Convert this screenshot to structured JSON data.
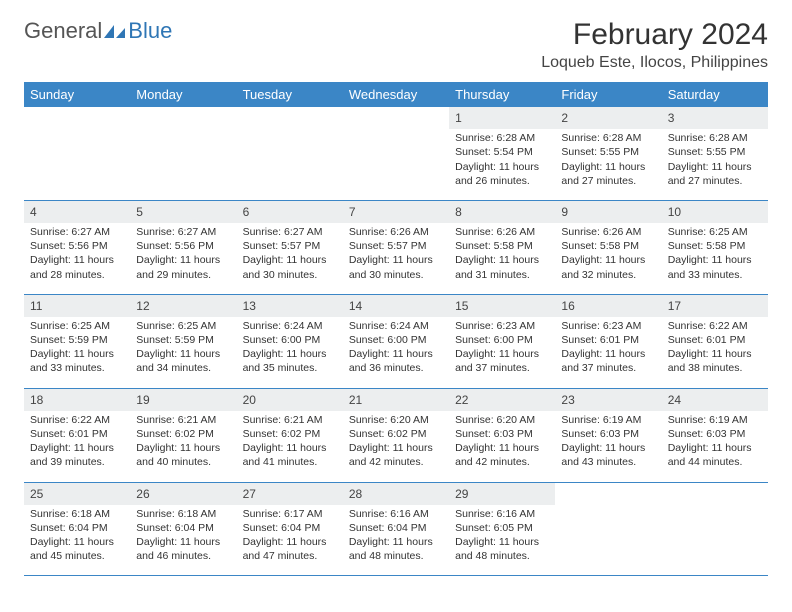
{
  "logo": {
    "text1": "General",
    "text2": "Blue"
  },
  "title": "February 2024",
  "location": "Loqueb Este, Ilocos, Philippines",
  "colors": {
    "header_bg": "#3b86c6",
    "header_text": "#ffffff",
    "daynum_bg": "#eceeef",
    "rule": "#3b86c6",
    "text": "#333333",
    "logo_gray": "#555555",
    "logo_blue": "#2f76b5"
  },
  "weekdays": [
    "Sunday",
    "Monday",
    "Tuesday",
    "Wednesday",
    "Thursday",
    "Friday",
    "Saturday"
  ],
  "weeks": [
    [
      null,
      null,
      null,
      null,
      {
        "n": "1",
        "sr": "6:28 AM",
        "ss": "5:54 PM",
        "dl": "11 hours and 26 minutes."
      },
      {
        "n": "2",
        "sr": "6:28 AM",
        "ss": "5:55 PM",
        "dl": "11 hours and 27 minutes."
      },
      {
        "n": "3",
        "sr": "6:28 AM",
        "ss": "5:55 PM",
        "dl": "11 hours and 27 minutes."
      }
    ],
    [
      {
        "n": "4",
        "sr": "6:27 AM",
        "ss": "5:56 PM",
        "dl": "11 hours and 28 minutes."
      },
      {
        "n": "5",
        "sr": "6:27 AM",
        "ss": "5:56 PM",
        "dl": "11 hours and 29 minutes."
      },
      {
        "n": "6",
        "sr": "6:27 AM",
        "ss": "5:57 PM",
        "dl": "11 hours and 30 minutes."
      },
      {
        "n": "7",
        "sr": "6:26 AM",
        "ss": "5:57 PM",
        "dl": "11 hours and 30 minutes."
      },
      {
        "n": "8",
        "sr": "6:26 AM",
        "ss": "5:58 PM",
        "dl": "11 hours and 31 minutes."
      },
      {
        "n": "9",
        "sr": "6:26 AM",
        "ss": "5:58 PM",
        "dl": "11 hours and 32 minutes."
      },
      {
        "n": "10",
        "sr": "6:25 AM",
        "ss": "5:58 PM",
        "dl": "11 hours and 33 minutes."
      }
    ],
    [
      {
        "n": "11",
        "sr": "6:25 AM",
        "ss": "5:59 PM",
        "dl": "11 hours and 33 minutes."
      },
      {
        "n": "12",
        "sr": "6:25 AM",
        "ss": "5:59 PM",
        "dl": "11 hours and 34 minutes."
      },
      {
        "n": "13",
        "sr": "6:24 AM",
        "ss": "6:00 PM",
        "dl": "11 hours and 35 minutes."
      },
      {
        "n": "14",
        "sr": "6:24 AM",
        "ss": "6:00 PM",
        "dl": "11 hours and 36 minutes."
      },
      {
        "n": "15",
        "sr": "6:23 AM",
        "ss": "6:00 PM",
        "dl": "11 hours and 37 minutes."
      },
      {
        "n": "16",
        "sr": "6:23 AM",
        "ss": "6:01 PM",
        "dl": "11 hours and 37 minutes."
      },
      {
        "n": "17",
        "sr": "6:22 AM",
        "ss": "6:01 PM",
        "dl": "11 hours and 38 minutes."
      }
    ],
    [
      {
        "n": "18",
        "sr": "6:22 AM",
        "ss": "6:01 PM",
        "dl": "11 hours and 39 minutes."
      },
      {
        "n": "19",
        "sr": "6:21 AM",
        "ss": "6:02 PM",
        "dl": "11 hours and 40 minutes."
      },
      {
        "n": "20",
        "sr": "6:21 AM",
        "ss": "6:02 PM",
        "dl": "11 hours and 41 minutes."
      },
      {
        "n": "21",
        "sr": "6:20 AM",
        "ss": "6:02 PM",
        "dl": "11 hours and 42 minutes."
      },
      {
        "n": "22",
        "sr": "6:20 AM",
        "ss": "6:03 PM",
        "dl": "11 hours and 42 minutes."
      },
      {
        "n": "23",
        "sr": "6:19 AM",
        "ss": "6:03 PM",
        "dl": "11 hours and 43 minutes."
      },
      {
        "n": "24",
        "sr": "6:19 AM",
        "ss": "6:03 PM",
        "dl": "11 hours and 44 minutes."
      }
    ],
    [
      {
        "n": "25",
        "sr": "6:18 AM",
        "ss": "6:04 PM",
        "dl": "11 hours and 45 minutes."
      },
      {
        "n": "26",
        "sr": "6:18 AM",
        "ss": "6:04 PM",
        "dl": "11 hours and 46 minutes."
      },
      {
        "n": "27",
        "sr": "6:17 AM",
        "ss": "6:04 PM",
        "dl": "11 hours and 47 minutes."
      },
      {
        "n": "28",
        "sr": "6:16 AM",
        "ss": "6:04 PM",
        "dl": "11 hours and 48 minutes."
      },
      {
        "n": "29",
        "sr": "6:16 AM",
        "ss": "6:05 PM",
        "dl": "11 hours and 48 minutes."
      },
      null,
      null
    ]
  ],
  "labels": {
    "sunrise": "Sunrise: ",
    "sunset": "Sunset: ",
    "daylight": "Daylight: "
  }
}
